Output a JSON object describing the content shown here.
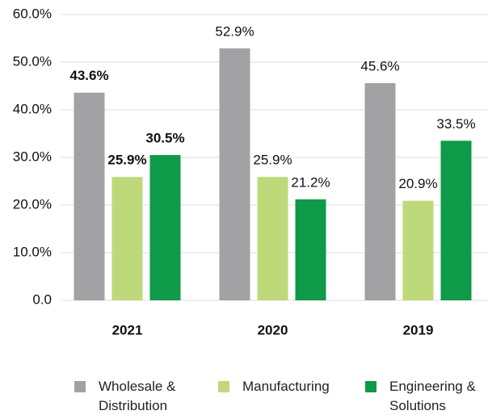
{
  "chart_data": {
    "type": "bar",
    "categories": [
      "2021",
      "2020",
      "2019"
    ],
    "series": [
      {
        "name": "Wholesale & Distribution",
        "color": "#a2a2a5",
        "values": [
          43.6,
          52.9,
          45.6
        ],
        "value_labels": [
          "43.6%",
          "52.9%",
          "45.6%"
        ]
      },
      {
        "name": "Manufacturing",
        "color": "#bed97a",
        "values": [
          25.9,
          25.9,
          20.9
        ],
        "value_labels": [
          "25.9%",
          "25.9%",
          "20.9%"
        ]
      },
      {
        "name": "Engineering & Solutions",
        "color": "#0e9a48",
        "values": [
          30.5,
          21.2,
          33.5
        ],
        "value_labels": [
          "30.5%",
          "21.2%",
          "33.5%"
        ]
      }
    ],
    "ylim": [
      0,
      60
    ],
    "yticks": [
      {
        "value": 0,
        "label": "0.0"
      },
      {
        "value": 10,
        "label": "10.0%"
      },
      {
        "value": 20,
        "label": "20.0%"
      },
      {
        "value": 30,
        "label": "30.0%"
      },
      {
        "value": 40,
        "label": "40.0%"
      },
      {
        "value": 50,
        "label": "50.0%"
      },
      {
        "value": 60,
        "label": "60.0%"
      }
    ],
    "grid": true,
    "legend": "bottom"
  }
}
